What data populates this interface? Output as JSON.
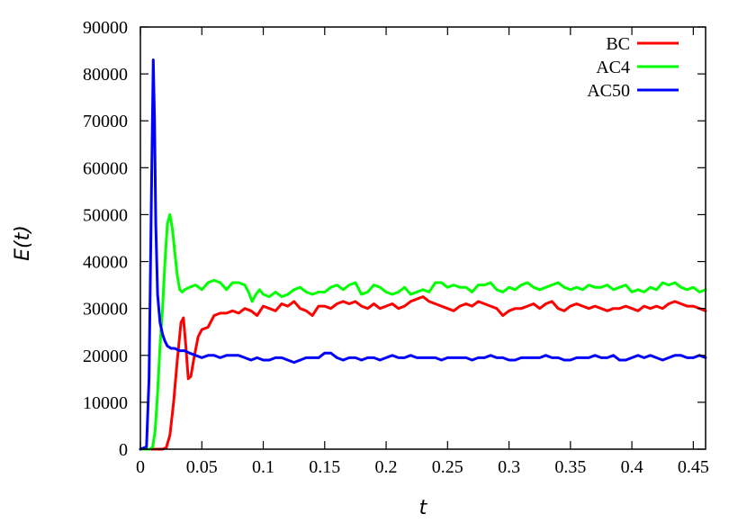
{
  "chart_data": {
    "type": "line",
    "title": "",
    "xlabel": "t",
    "ylabel": "E(t)",
    "xlim": [
      0,
      0.46
    ],
    "ylim": [
      0,
      90000
    ],
    "xticks": [
      0,
      0.05,
      0.1,
      0.15,
      0.2,
      0.25,
      0.3,
      0.35,
      0.4,
      0.45
    ],
    "xtick_labels": [
      "0",
      "0.05",
      "0.1",
      "0.15",
      "0.2",
      "0.25",
      "0.3",
      "0.35",
      "0.4",
      "0.45"
    ],
    "yticks": [
      0,
      10000,
      20000,
      30000,
      40000,
      50000,
      60000,
      70000,
      80000,
      90000
    ],
    "ytick_labels": [
      "0",
      "10000",
      "20000",
      "30000",
      "40000",
      "50000",
      "60000",
      "70000",
      "80000",
      "90000"
    ],
    "grid": false,
    "legend_position": "top-right",
    "series": [
      {
        "name": "BC",
        "color": "#ff0000",
        "x": [
          0,
          0.018,
          0.021,
          0.024,
          0.027,
          0.03,
          0.033,
          0.035,
          0.037,
          0.039,
          0.041,
          0.044,
          0.047,
          0.05,
          0.055,
          0.06,
          0.065,
          0.07,
          0.075,
          0.08,
          0.085,
          0.09,
          0.095,
          0.1,
          0.105,
          0.11,
          0.115,
          0.12,
          0.125,
          0.13,
          0.135,
          0.14,
          0.145,
          0.15,
          0.155,
          0.16,
          0.165,
          0.17,
          0.175,
          0.18,
          0.185,
          0.19,
          0.195,
          0.2,
          0.205,
          0.21,
          0.215,
          0.22,
          0.225,
          0.23,
          0.235,
          0.24,
          0.245,
          0.25,
          0.255,
          0.26,
          0.265,
          0.27,
          0.275,
          0.28,
          0.285,
          0.29,
          0.295,
          0.3,
          0.305,
          0.31,
          0.315,
          0.32,
          0.325,
          0.33,
          0.335,
          0.34,
          0.345,
          0.35,
          0.355,
          0.36,
          0.365,
          0.37,
          0.375,
          0.38,
          0.385,
          0.39,
          0.395,
          0.4,
          0.405,
          0.41,
          0.415,
          0.42,
          0.425,
          0.43,
          0.435,
          0.44,
          0.445,
          0.45,
          0.455,
          0.46
        ],
        "y": [
          0,
          0,
          300,
          3000,
          10000,
          19000,
          27000,
          28000,
          22000,
          15000,
          15500,
          20000,
          24000,
          25500,
          26000,
          28500,
          29000,
          29000,
          29500,
          29000,
          30000,
          29500,
          28500,
          30500,
          30000,
          29500,
          31000,
          30500,
          31500,
          30000,
          29500,
          28500,
          30500,
          30500,
          30000,
          31000,
          31500,
          31000,
          31500,
          30500,
          30000,
          31000,
          30000,
          30500,
          31000,
          30000,
          30500,
          31500,
          32000,
          32500,
          31500,
          31000,
          30500,
          30000,
          29500,
          30500,
          31000,
          30500,
          31500,
          31000,
          30500,
          30000,
          28500,
          29500,
          30000,
          30000,
          30500,
          31000,
          30000,
          31000,
          31500,
          30000,
          29500,
          30500,
          31000,
          30500,
          30000,
          30500,
          30000,
          29500,
          30000,
          30000,
          30500,
          30000,
          29500,
          30500,
          30000,
          30500,
          30000,
          31000,
          31500,
          31000,
          30500,
          30500,
          30000,
          29500
        ]
      },
      {
        "name": "AC4",
        "color": "#00ff00",
        "x": [
          0,
          0.008,
          0.01,
          0.012,
          0.014,
          0.016,
          0.018,
          0.02,
          0.022,
          0.024,
          0.026,
          0.028,
          0.03,
          0.032,
          0.034,
          0.036,
          0.04,
          0.045,
          0.05,
          0.055,
          0.06,
          0.065,
          0.07,
          0.075,
          0.08,
          0.085,
          0.088,
          0.091,
          0.094,
          0.097,
          0.1,
          0.105,
          0.11,
          0.115,
          0.12,
          0.125,
          0.13,
          0.135,
          0.14,
          0.145,
          0.15,
          0.155,
          0.16,
          0.165,
          0.17,
          0.175,
          0.18,
          0.185,
          0.19,
          0.195,
          0.2,
          0.205,
          0.21,
          0.215,
          0.22,
          0.225,
          0.23,
          0.235,
          0.24,
          0.245,
          0.25,
          0.255,
          0.26,
          0.265,
          0.27,
          0.275,
          0.28,
          0.285,
          0.29,
          0.295,
          0.3,
          0.305,
          0.31,
          0.315,
          0.32,
          0.325,
          0.33,
          0.335,
          0.34,
          0.345,
          0.35,
          0.355,
          0.36,
          0.365,
          0.37,
          0.375,
          0.38,
          0.385,
          0.39,
          0.395,
          0.4,
          0.405,
          0.41,
          0.415,
          0.42,
          0.425,
          0.43,
          0.435,
          0.44,
          0.445,
          0.45,
          0.455,
          0.46
        ],
        "y": [
          0,
          0,
          500,
          4000,
          12000,
          22000,
          30000,
          40000,
          48000,
          50000,
          47000,
          42000,
          37000,
          34000,
          33500,
          34000,
          34500,
          35000,
          34000,
          35500,
          36000,
          35500,
          34000,
          35500,
          35500,
          35000,
          33500,
          31500,
          33000,
          34000,
          33000,
          32500,
          33500,
          32500,
          33000,
          34000,
          34500,
          33500,
          33000,
          33500,
          33500,
          34500,
          35000,
          34000,
          35000,
          35500,
          33000,
          33500,
          35000,
          34500,
          33500,
          33000,
          33500,
          34500,
          33000,
          33500,
          34000,
          33500,
          35500,
          35500,
          34500,
          35000,
          34500,
          34500,
          33500,
          35000,
          35000,
          35500,
          34000,
          33500,
          34500,
          34000,
          35000,
          35500,
          34500,
          34000,
          34500,
          35000,
          35500,
          34500,
          34000,
          34500,
          34000,
          35000,
          34500,
          34500,
          35000,
          34000,
          34500,
          35000,
          33500,
          34000,
          33500,
          34500,
          34000,
          35500,
          35000,
          35500,
          34500,
          34000,
          34500,
          33500,
          34000
        ]
      },
      {
        "name": "AC50",
        "color": "#0000ff",
        "x": [
          0,
          0.005,
          0.007,
          0.009,
          0.0105,
          0.0115,
          0.0125,
          0.014,
          0.016,
          0.018,
          0.02,
          0.022,
          0.025,
          0.028,
          0.032,
          0.036,
          0.04,
          0.045,
          0.05,
          0.055,
          0.06,
          0.065,
          0.07,
          0.075,
          0.08,
          0.085,
          0.09,
          0.095,
          0.1,
          0.105,
          0.11,
          0.115,
          0.12,
          0.125,
          0.13,
          0.135,
          0.14,
          0.145,
          0.15,
          0.155,
          0.16,
          0.165,
          0.17,
          0.175,
          0.18,
          0.185,
          0.19,
          0.195,
          0.2,
          0.205,
          0.21,
          0.215,
          0.22,
          0.225,
          0.23,
          0.235,
          0.24,
          0.245,
          0.25,
          0.255,
          0.26,
          0.265,
          0.27,
          0.275,
          0.28,
          0.285,
          0.29,
          0.295,
          0.3,
          0.305,
          0.31,
          0.315,
          0.32,
          0.325,
          0.33,
          0.335,
          0.34,
          0.345,
          0.35,
          0.355,
          0.36,
          0.365,
          0.37,
          0.375,
          0.38,
          0.385,
          0.39,
          0.395,
          0.4,
          0.405,
          0.41,
          0.415,
          0.42,
          0.425,
          0.43,
          0.435,
          0.44,
          0.445,
          0.45,
          0.455,
          0.46
        ],
        "y": [
          0,
          500,
          15000,
          55000,
          83000,
          70000,
          48000,
          33000,
          27000,
          24500,
          23000,
          22000,
          21500,
          21500,
          21000,
          21000,
          20500,
          20000,
          19500,
          20000,
          20000,
          19500,
          20000,
          20000,
          20000,
          19500,
          19000,
          19500,
          19000,
          19000,
          19500,
          19500,
          19000,
          18500,
          19000,
          19500,
          19500,
          19500,
          20500,
          20500,
          19500,
          19000,
          19500,
          19500,
          19000,
          19500,
          19500,
          19000,
          19500,
          20000,
          19500,
          19500,
          20000,
          19500,
          19500,
          19500,
          19500,
          19000,
          19500,
          19500,
          19500,
          19500,
          19000,
          19500,
          19500,
          20000,
          19500,
          19500,
          19000,
          19000,
          19500,
          19500,
          19500,
          19500,
          20000,
          19500,
          19500,
          19000,
          19000,
          19500,
          19500,
          19500,
          20000,
          19500,
          19500,
          20000,
          19000,
          19000,
          19500,
          20000,
          19500,
          20000,
          19500,
          19000,
          19500,
          20000,
          20000,
          19500,
          19500,
          20000,
          19500
        ]
      }
    ]
  }
}
